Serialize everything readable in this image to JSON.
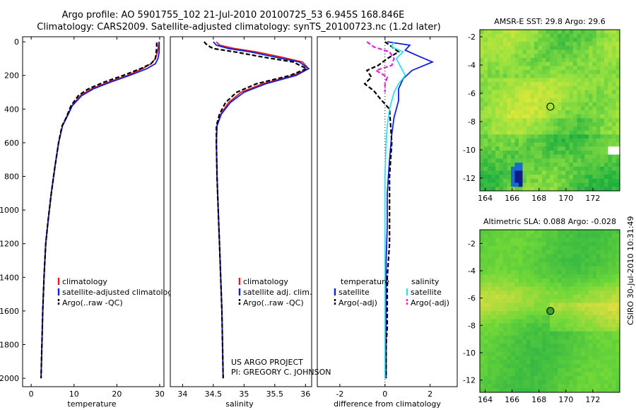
{
  "title": {
    "line1": "Argo profile: AO 5901755_102 21-Jul-2010 20100725_53 6.945S 168.846E",
    "line2": "Climatology: CARS2009. Satellite-adjusted climatology: synTS_20100723.nc (1.2d later)"
  },
  "credit": {
    "project": "US ARGO PROJECT",
    "pi": "PI: GREGORY C. JOHNSON"
  },
  "stamp": "CSIRO 30-Jul-2010 10:31:49",
  "colors": {
    "climatology": "#e41a1a",
    "satellite": "#1020d8",
    "argo": "#000000",
    "satellite_sal": "#30e0e8",
    "argo_sal": "#e020e0"
  },
  "chart_data": [
    {
      "type": "line",
      "id": "temperature",
      "xlabel": "temperature",
      "ylabel": "",
      "xlim": [
        -2,
        31
      ],
      "ylim": [
        2050,
        -30
      ],
      "xticks": [
        0,
        10,
        20,
        30
      ],
      "yticks": [
        0,
        200,
        400,
        600,
        800,
        1000,
        1200,
        1400,
        1600,
        1800,
        2000
      ],
      "legend": [
        "climatology",
        "satellite-adjusted climatology",
        "Argo(..raw -QC)"
      ],
      "series": [
        {
          "name": "climatology",
          "color": "#e41a1a",
          "dash": "",
          "x": [
            29.8,
            29.7,
            29.5,
            29.0,
            28.0,
            26.0,
            22.5,
            18.0,
            14.0,
            11.5,
            9.5,
            8.2,
            7.3,
            6.4,
            5.5,
            4.7,
            4.0,
            3.4,
            3.0,
            2.7,
            2.5,
            2.3
          ],
          "y": [
            0,
            30,
            60,
            100,
            130,
            160,
            200,
            240,
            280,
            320,
            380,
            450,
            500,
            600,
            750,
            900,
            1050,
            1200,
            1400,
            1600,
            1800,
            2000
          ]
        },
        {
          "name": "satellite-adjusted climatology",
          "color": "#1020d8",
          "dash": "",
          "x": [
            29.9,
            29.9,
            29.9,
            29.6,
            29.0,
            27.0,
            23.0,
            18.5,
            14.5,
            11.8,
            9.6,
            8.3,
            7.3,
            6.4,
            5.5,
            4.7,
            4.0,
            3.4,
            3.0,
            2.7,
            2.5,
            2.3
          ],
          "y": [
            0,
            30,
            60,
            100,
            130,
            160,
            200,
            240,
            280,
            320,
            380,
            450,
            500,
            600,
            750,
            900,
            1050,
            1200,
            1400,
            1600,
            1800,
            2000
          ]
        },
        {
          "name": "Argo(..raw -QC)",
          "color": "#000000",
          "dash": "6,3",
          "x": [
            29.3,
            29.3,
            29.2,
            29.0,
            28.0,
            25.5,
            21.5,
            17.0,
            13.3,
            11.0,
            9.3,
            8.2,
            7.2,
            6.4,
            5.5,
            4.7,
            4.0,
            3.4,
            3.0,
            2.7,
            2.5,
            2.3
          ],
          "y": [
            5,
            30,
            60,
            100,
            130,
            160,
            200,
            240,
            280,
            320,
            380,
            450,
            500,
            600,
            750,
            900,
            1050,
            1200,
            1400,
            1600,
            1800,
            2000
          ]
        }
      ]
    },
    {
      "type": "line",
      "id": "salinity",
      "xlabel": "salinity",
      "ylabel": "",
      "xlim": [
        33.8,
        36.1
      ],
      "ylim": [
        2050,
        -30
      ],
      "xticks": [
        34,
        34.5,
        35,
        35.5,
        36
      ],
      "yticks": [],
      "legend": [
        "climatology",
        "satellite adj. clim.",
        "Argo(..raw -QC)"
      ],
      "series": [
        {
          "name": "climatology",
          "color": "#e41a1a",
          "dash": "",
          "x": [
            34.55,
            34.6,
            34.85,
            35.2,
            35.6,
            35.95,
            36.05,
            35.8,
            35.3,
            34.95,
            34.75,
            34.62,
            34.56,
            34.55,
            34.56,
            34.58,
            34.6,
            34.62,
            34.64,
            34.65,
            34.66
          ],
          "y": [
            0,
            20,
            40,
            60,
            90,
            120,
            160,
            200,
            250,
            300,
            360,
            430,
            500,
            600,
            800,
            1000,
            1200,
            1400,
            1600,
            1800,
            2000
          ]
        },
        {
          "name": "satellite adj. clim.",
          "color": "#1020d8",
          "dash": "",
          "x": [
            34.5,
            34.55,
            34.75,
            35.1,
            35.5,
            35.9,
            36.05,
            35.85,
            35.35,
            35.0,
            34.78,
            34.63,
            34.56,
            34.55,
            34.56,
            34.58,
            34.6,
            34.62,
            34.64,
            34.65,
            34.66
          ],
          "y": [
            0,
            20,
            40,
            60,
            90,
            120,
            160,
            200,
            250,
            300,
            360,
            430,
            500,
            600,
            800,
            1000,
            1200,
            1400,
            1600,
            1800,
            2000
          ]
        },
        {
          "name": "Argo(..raw -QC)",
          "color": "#000000",
          "dash": "6,3",
          "x": [
            34.35,
            34.4,
            34.5,
            34.85,
            35.3,
            35.8,
            36.02,
            35.75,
            35.2,
            34.88,
            34.7,
            34.6,
            34.55,
            34.55,
            34.56,
            34.58,
            34.6,
            34.62,
            34.64,
            34.65,
            34.66
          ],
          "y": [
            0,
            20,
            40,
            60,
            90,
            120,
            160,
            200,
            250,
            300,
            360,
            430,
            500,
            600,
            800,
            1000,
            1200,
            1400,
            1600,
            1800,
            2000
          ]
        }
      ]
    },
    {
      "type": "line",
      "id": "difference",
      "xlabel": "difference from climatology",
      "ylabel": "",
      "xlim": [
        -3,
        3.2
      ],
      "ylim": [
        2050,
        -30
      ],
      "xticks": [
        -2,
        0,
        2
      ],
      "yticks": [],
      "legend_left_header": "temperature",
      "legend_right_header": "salinity",
      "legend": [
        "satellite",
        "Argo(-adj)",
        "satellite",
        "Argo(-adj)"
      ],
      "series": [
        {
          "name": "satellite",
          "color": "#1020d8",
          "dash": "",
          "x": [
            0.1,
            1.1,
            0.9,
            1.4,
            2.1,
            1.2,
            0.8,
            0.6,
            0.6,
            0.4,
            0.3,
            0.2,
            0.1,
            0.1,
            0.05,
            0.05,
            0.05,
            0.05,
            0.05,
            0.05
          ],
          "y": [
            0,
            20,
            50,
            80,
            120,
            170,
            220,
            280,
            350,
            450,
            550,
            700,
            900,
            1100,
            1300,
            1500,
            1600,
            1700,
            1800,
            2000
          ]
        },
        {
          "name": "Argo(-adj)",
          "color": "#000000",
          "dash": "6,3",
          "x": [
            0.0,
            0.3,
            0.6,
            0.1,
            -0.3,
            -0.8,
            -0.6,
            -0.9,
            -0.5,
            -0.2,
            0.2,
            0.3,
            0.2,
            0.2,
            0.2,
            0.1,
            0.1,
            0.1,
            0.05,
            0.05
          ],
          "y": [
            0,
            30,
            60,
            100,
            140,
            170,
            210,
            250,
            290,
            340,
            400,
            600,
            800,
            1000,
            1200,
            1400,
            1600,
            1700,
            1800,
            2000
          ]
        },
        {
          "name": "satellite",
          "color": "#30e0e8",
          "dash": "",
          "x": [
            0.4,
            0.3,
            0.8,
            0.5,
            0.7,
            0.9,
            0.6,
            0.4,
            0.2,
            0.1,
            0.05,
            0.0,
            0.0,
            0.0,
            0.0,
            0.0,
            0.0,
            0.0,
            0.0,
            0.0
          ],
          "y": [
            0,
            30,
            60,
            100,
            150,
            200,
            250,
            300,
            400,
            500,
            600,
            800,
            1000,
            1200,
            1400,
            1600,
            1700,
            1800,
            1900,
            2000
          ]
        },
        {
          "name": "Argo(-adj)",
          "color": "#e020e0",
          "dash": "6,3",
          "x": [
            -0.8,
            -0.5,
            0.2,
            0.4,
            0.3,
            -0.4,
            0.1,
            0.0,
            0.0
          ],
          "y": [
            0,
            30,
            60,
            100,
            140,
            170,
            210,
            250,
            300
          ]
        }
      ]
    },
    {
      "type": "heatmap",
      "id": "sst",
      "title": "AMSR-E SST: 29.8 Argo: 29.6",
      "xlim": [
        163.6,
        174
      ],
      "ylim": [
        -12.9,
        -1.5
      ],
      "xticks": [
        164,
        166,
        168,
        170,
        172
      ],
      "yticks": [
        -2,
        -4,
        -6,
        -8,
        -10,
        -12
      ],
      "marker": {
        "lon": 168.846,
        "lat": -6.945
      }
    },
    {
      "type": "heatmap",
      "id": "sla",
      "title": "Altimetric SLA: 0.088 Argo: -0.028",
      "xlim": [
        163.6,
        174
      ],
      "ylim": [
        -12.9,
        -1.0
      ],
      "xticks": [
        164,
        166,
        168,
        170,
        172
      ],
      "yticks": [
        -2,
        -4,
        -6,
        -8,
        -10,
        -12
      ],
      "marker": {
        "lon": 168.846,
        "lat": -6.945
      }
    }
  ]
}
